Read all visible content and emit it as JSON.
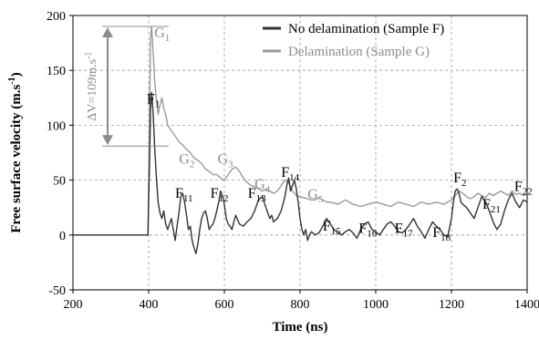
{
  "chart_data": {
    "type": "line",
    "xlabel": "Time (ns)",
    "ylabel": "Free surface velocity (m.s",
    "ylabel_sup": "-1",
    "ylabel_tail": ")",
    "xlim": [
      200,
      1400
    ],
    "ylim": [
      -50,
      200
    ],
    "x_ticks": [
      200,
      400,
      600,
      800,
      1000,
      1200,
      1400
    ],
    "y_ticks": [
      -50,
      0,
      50,
      100,
      150,
      200
    ],
    "grid": "dashed",
    "legend_position": "top-right",
    "colors": {
      "no_delamination": "#333333",
      "delamination": "#9a9a9a"
    },
    "series": [
      {
        "name": "No delamination (Sample F)",
        "color": "#333333",
        "x": [
          200,
          398,
          402,
          405,
          408,
          412,
          416,
          420,
          425,
          430,
          435,
          440,
          445,
          450,
          455,
          460,
          465,
          470,
          475,
          480,
          485,
          490,
          495,
          500,
          505,
          510,
          515,
          520,
          525,
          530,
          535,
          540,
          545,
          550,
          555,
          560,
          565,
          570,
          575,
          580,
          585,
          590,
          595,
          600,
          605,
          610,
          615,
          620,
          625,
          630,
          640,
          650,
          660,
          670,
          680,
          690,
          700,
          705,
          710,
          715,
          720,
          725,
          730,
          740,
          750,
          760,
          765,
          770,
          775,
          780,
          785,
          790,
          795,
          800,
          805,
          810,
          815,
          820,
          825,
          830,
          840,
          850,
          860,
          870,
          880,
          890,
          900,
          910,
          920,
          930,
          940,
          950,
          960,
          970,
          980,
          990,
          1000,
          1010,
          1020,
          1030,
          1040,
          1050,
          1060,
          1070,
          1080,
          1090,
          1100,
          1110,
          1120,
          1130,
          1140,
          1150,
          1160,
          1170,
          1180,
          1190,
          1200,
          1205,
          1210,
          1215,
          1220,
          1225,
          1230,
          1240,
          1250,
          1260,
          1270,
          1280,
          1290,
          1300,
          1310,
          1320,
          1330,
          1340,
          1350,
          1360,
          1370,
          1380,
          1390,
          1400
        ],
        "y": [
          0,
          0,
          60,
          115,
          130,
          110,
          80,
          55,
          30,
          20,
          15,
          22,
          10,
          5,
          10,
          15,
          5,
          -5,
          8,
          20,
          35,
          38,
          30,
          18,
          5,
          8,
          -5,
          -12,
          -17,
          -8,
          5,
          15,
          20,
          22,
          15,
          5,
          8,
          10,
          15,
          22,
          30,
          40,
          36,
          28,
          15,
          10,
          8,
          5,
          12,
          18,
          10,
          8,
          12,
          15,
          22,
          32,
          35,
          30,
          25,
          20,
          15,
          18,
          12,
          15,
          22,
          35,
          45,
          52,
          40,
          45,
          50,
          42,
          30,
          15,
          5,
          0,
          5,
          -5,
          0,
          3,
          0,
          2,
          8,
          15,
          10,
          5,
          2,
          0,
          3,
          5,
          2,
          -3,
          5,
          10,
          12,
          5,
          3,
          0,
          5,
          10,
          12,
          8,
          3,
          2,
          5,
          10,
          15,
          8,
          3,
          -3,
          5,
          12,
          8,
          5,
          0,
          -2,
          15,
          30,
          40,
          42,
          38,
          30,
          28,
          25,
          20,
          15,
          25,
          35,
          30,
          22,
          12,
          5,
          10,
          22,
          32,
          38,
          30,
          25,
          32,
          30
        ]
      },
      {
        "name": "Delamination (Sample G)",
        "color": "#9a9a9a",
        "x": [
          200,
          398,
          402,
          405,
          408,
          412,
          416,
          420,
          425,
          430,
          435,
          440,
          445,
          450,
          460,
          470,
          480,
          490,
          500,
          510,
          520,
          530,
          540,
          550,
          560,
          570,
          580,
          590,
          600,
          610,
          620,
          630,
          640,
          650,
          660,
          670,
          680,
          690,
          700,
          710,
          720,
          730,
          740,
          750,
          760,
          770,
          780,
          790,
          800,
          810,
          820,
          830,
          840,
          850,
          860,
          870,
          880,
          900,
          920,
          940,
          960,
          980,
          1000,
          1020,
          1040,
          1060,
          1080,
          1100,
          1120,
          1140,
          1160,
          1180,
          1200,
          1210,
          1220,
          1230,
          1240,
          1250,
          1260,
          1270,
          1280,
          1290,
          1300,
          1310,
          1320,
          1330,
          1340,
          1350,
          1360,
          1370,
          1380,
          1390,
          1400
        ],
        "y": [
          0,
          0,
          100,
          180,
          190,
          165,
          140,
          125,
          110,
          118,
          125,
          115,
          110,
          100,
          95,
          90,
          85,
          82,
          78,
          75,
          70,
          68,
          65,
          60,
          58,
          55,
          55,
          52,
          50,
          55,
          60,
          62,
          58,
          52,
          48,
          45,
          44,
          42,
          40,
          42,
          40,
          38,
          40,
          45,
          50,
          48,
          40,
          36,
          35,
          34,
          33,
          32,
          32,
          34,
          32,
          30,
          30,
          28,
          32,
          28,
          26,
          28,
          30,
          28,
          26,
          30,
          28,
          26,
          30,
          28,
          30,
          28,
          32,
          36,
          40,
          38,
          35,
          33,
          35,
          38,
          36,
          34,
          38,
          36,
          38,
          40,
          38,
          36,
          40,
          37,
          38,
          36,
          38
        ]
      }
    ],
    "annotations": {
      "delta_v": "ΔV=109m.s",
      "delta_v_sup": "-1",
      "f_labels": [
        {
          "base": "F",
          "sub": "1",
          "x": 395,
          "y": 120
        },
        {
          "base": "F",
          "sub": "11",
          "x": 470,
          "y": 34
        },
        {
          "base": "F",
          "sub": "12",
          "x": 563,
          "y": 34
        },
        {
          "base": "F",
          "sub": "13",
          "x": 662,
          "y": 34
        },
        {
          "base": "F",
          "sub": "14",
          "x": 750,
          "y": 53
        },
        {
          "base": "F",
          "sub": "15",
          "x": 860,
          "y": 4
        },
        {
          "base": "F",
          "sub": "16",
          "x": 955,
          "y": 2
        },
        {
          "base": "F",
          "sub": "17",
          "x": 1050,
          "y": 2
        },
        {
          "base": "F",
          "sub": "18",
          "x": 1150,
          "y": -2
        },
        {
          "base": "F",
          "sub": "2",
          "x": 1205,
          "y": 48
        },
        {
          "base": "F",
          "sub": "21",
          "x": 1282,
          "y": 24
        },
        {
          "base": "F",
          "sub": "22",
          "x": 1366,
          "y": 40
        }
      ],
      "g_labels": [
        {
          "base": "G",
          "sub": "1",
          "x": 415,
          "y": 180
        },
        {
          "base": "G",
          "sub": "2",
          "x": 480,
          "y": 65
        },
        {
          "base": "G",
          "sub": "3",
          "x": 582,
          "y": 65
        },
        {
          "base": "G",
          "sub": "4",
          "x": 680,
          "y": 42
        },
        {
          "base": "G",
          "sub": "5",
          "x": 820,
          "y": 33
        }
      ]
    }
  }
}
